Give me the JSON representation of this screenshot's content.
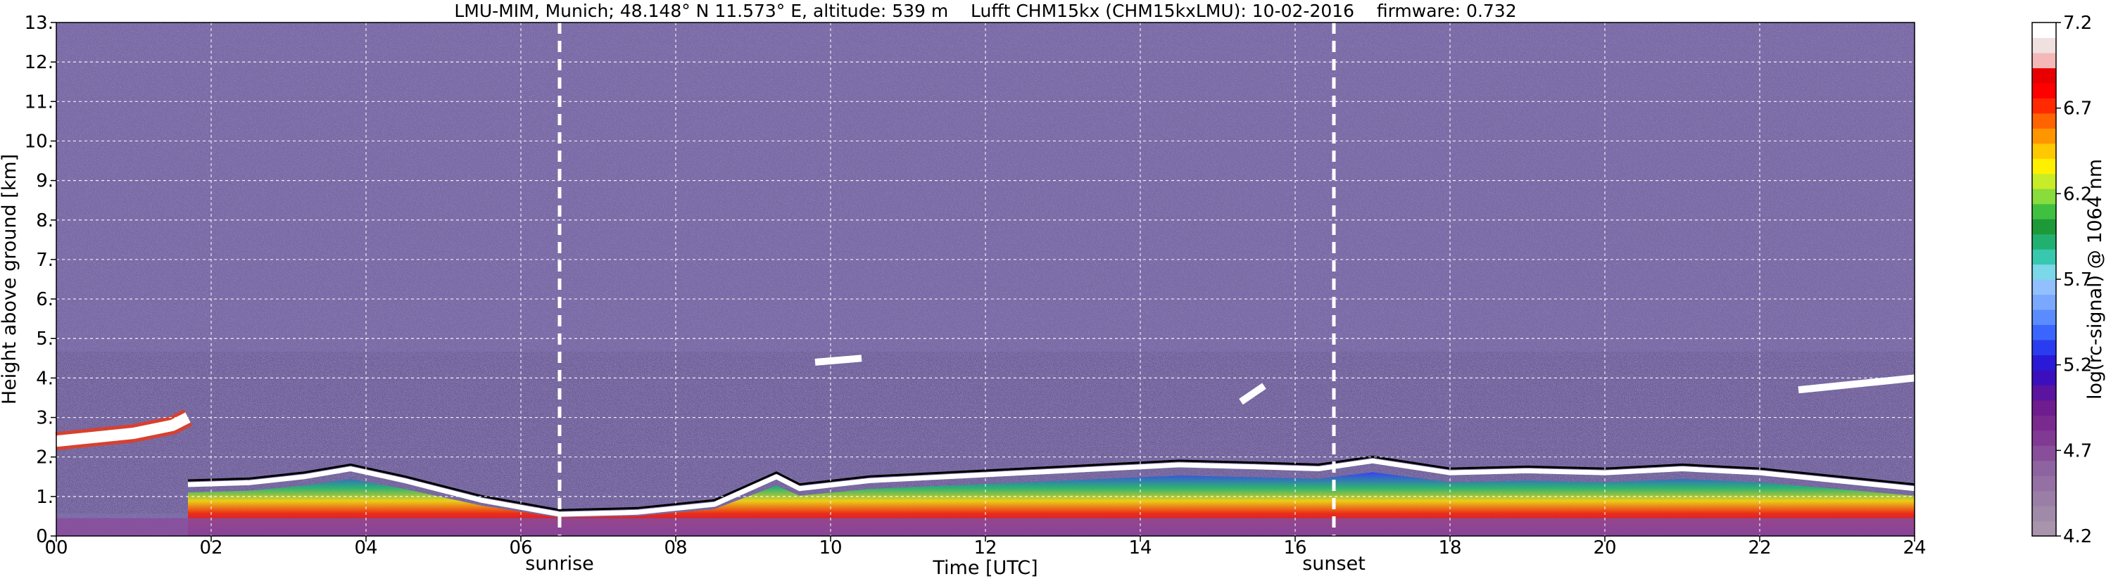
{
  "chart_data": {
    "type": "heatmap",
    "title": "LMU-MIM, Munich; 48.148° N 11.573° E, altitude: 539 m    Lufft CHM15kx (CHM15kxLMU): 10-02-2016    firmware: 0.732",
    "xlabel": "Time [UTC]",
    "ylabel": "Height above ground [km]",
    "xlim": [
      0,
      24
    ],
    "ylim": [
      0,
      13
    ],
    "x_ticks": [
      0,
      2,
      4,
      6,
      8,
      10,
      12,
      14,
      16,
      18,
      20,
      22,
      24
    ],
    "x_tick_labels": [
      "00",
      "02",
      "04",
      "06",
      "08",
      "10",
      "12",
      "14",
      "16",
      "18",
      "20",
      "22",
      "24"
    ],
    "y_ticks": [
      0,
      1,
      2,
      3,
      4,
      5,
      6,
      7,
      8,
      9,
      10,
      11,
      12,
      13
    ],
    "y_tick_labels": [
      "0.",
      "1.",
      "2.",
      "3.",
      "4.",
      "5.",
      "6.",
      "7.",
      "8.",
      "9.",
      "10.",
      "11.",
      "12.",
      "13."
    ],
    "grid": true,
    "annotations": [
      {
        "label": "sunrise",
        "x": 6.5
      },
      {
        "label": "sunset",
        "x": 16.5
      }
    ],
    "colorbar": {
      "label": "log(rc-signal) @ 1064 nm",
      "range": [
        4.2,
        7.2
      ],
      "ticks": [
        4.2,
        4.7,
        5.2,
        5.7,
        6.2,
        6.7,
        7.2
      ],
      "tick_labels": [
        "4.2",
        "4.7",
        "5.2",
        "5.7",
        "6.2",
        "6.7",
        "7.2"
      ]
    },
    "layers": [
      {
        "name": "boundary layer top (white)",
        "x": [
          1.7,
          2.5,
          3.2,
          3.8,
          4.5,
          5.5,
          6.5,
          7.5,
          8.5,
          9.3,
          9.6,
          10.5,
          11.5,
          12.5,
          13.5,
          14.5,
          15.5,
          16.3,
          17,
          18,
          19,
          20,
          21,
          22,
          23,
          24
        ],
        "y": [
          1.3,
          1.35,
          1.5,
          1.7,
          1.4,
          0.9,
          0.55,
          0.6,
          0.8,
          1.5,
          1.2,
          1.4,
          1.5,
          1.6,
          1.7,
          1.8,
          1.75,
          1.7,
          1.9,
          1.6,
          1.65,
          1.6,
          1.7,
          1.6,
          1.4,
          1.2
        ]
      },
      {
        "name": "elevated cloud (white)",
        "x": [
          0,
          0.5,
          1.0,
          1.5,
          1.7
        ],
        "y": [
          2.4,
          2.5,
          2.6,
          2.8,
          3.0
        ]
      },
      {
        "name": "mid-level cloud (white)",
        "x": [
          9.8,
          10.4,
          15.3,
          15.6,
          22.5,
          24
        ],
        "y": [
          4.4,
          4.5,
          3.4,
          3.8,
          3.7,
          4.0
        ]
      }
    ]
  }
}
